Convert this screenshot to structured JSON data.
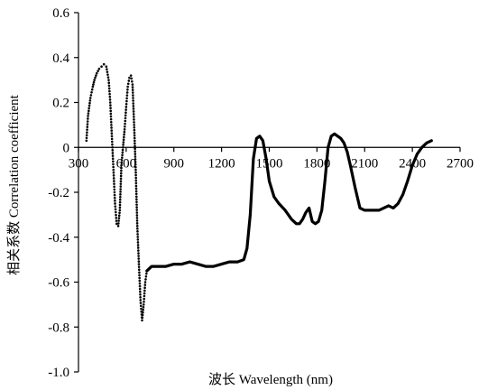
{
  "chart_data": {
    "type": "scatter",
    "title": "",
    "xlabel": "波长 Wavelength (nm)",
    "ylabel": "相关系数 Correlation coefficient",
    "xlim": [
      300,
      2700
    ],
    "ylim": [
      -1.0,
      0.6
    ],
    "x_ticks": [
      "300",
      "600",
      "900",
      "1200",
      "1500",
      "1800",
      "2100",
      "2400",
      "2700"
    ],
    "y_ticks": [
      "0.6",
      "0.4",
      "0.2",
      "0",
      "-0.2",
      "-0.4",
      "-0.6",
      "-0.8",
      "-1.0"
    ],
    "grid": false,
    "legend": "none",
    "series": [
      {
        "style": "dotted",
        "color": "#000000",
        "x": [
          350,
          360,
          375,
          390,
          400,
          415,
          430,
          445,
          460,
          475,
          490,
          500,
          510,
          520,
          530,
          540,
          550,
          560,
          570,
          580,
          590,
          600,
          610,
          620,
          630,
          640,
          650,
          660,
          670,
          680,
          690,
          700,
          710,
          720,
          730
        ],
        "y": [
          0.03,
          0.14,
          0.22,
          0.27,
          0.3,
          0.33,
          0.35,
          0.36,
          0.37,
          0.36,
          0.3,
          0.2,
          0.05,
          -0.1,
          -0.25,
          -0.34,
          -0.35,
          -0.28,
          -0.08,
          0.0,
          0.08,
          0.18,
          0.27,
          0.31,
          0.32,
          0.28,
          0.1,
          -0.1,
          -0.35,
          -0.52,
          -0.68,
          -0.77,
          -0.7,
          -0.6,
          -0.55
        ]
      },
      {
        "style": "solid",
        "color": "#000000",
        "x": [
          730,
          760,
          800,
          850,
          900,
          950,
          1000,
          1050,
          1100,
          1150,
          1200,
          1250,
          1300,
          1340,
          1360,
          1380,
          1400,
          1420,
          1440,
          1460,
          1480,
          1500,
          1530,
          1560,
          1600,
          1640,
          1670,
          1690,
          1710,
          1730,
          1750,
          1770,
          1790,
          1810,
          1830,
          1850,
          1870,
          1890,
          1910,
          1930,
          1950,
          1970,
          1990,
          2010,
          2040,
          2070,
          2100,
          2130,
          2160,
          2190,
          2220,
          2250,
          2280,
          2310,
          2340,
          2370,
          2400,
          2430,
          2460,
          2490,
          2520
        ],
        "y": [
          -0.55,
          -0.53,
          -0.53,
          -0.53,
          -0.52,
          -0.52,
          -0.51,
          -0.52,
          -0.53,
          -0.53,
          -0.52,
          -0.51,
          -0.51,
          -0.5,
          -0.45,
          -0.3,
          -0.05,
          0.04,
          0.05,
          0.03,
          -0.05,
          -0.15,
          -0.22,
          -0.25,
          -0.28,
          -0.32,
          -0.34,
          -0.34,
          -0.32,
          -0.29,
          -0.27,
          -0.33,
          -0.34,
          -0.33,
          -0.28,
          -0.15,
          0.0,
          0.05,
          0.06,
          0.05,
          0.04,
          0.02,
          -0.02,
          -0.08,
          -0.18,
          -0.27,
          -0.28,
          -0.28,
          -0.28,
          -0.28,
          -0.27,
          -0.26,
          -0.27,
          -0.25,
          -0.21,
          -0.15,
          -0.08,
          -0.03,
          0.0,
          0.02,
          0.03
        ]
      }
    ]
  }
}
